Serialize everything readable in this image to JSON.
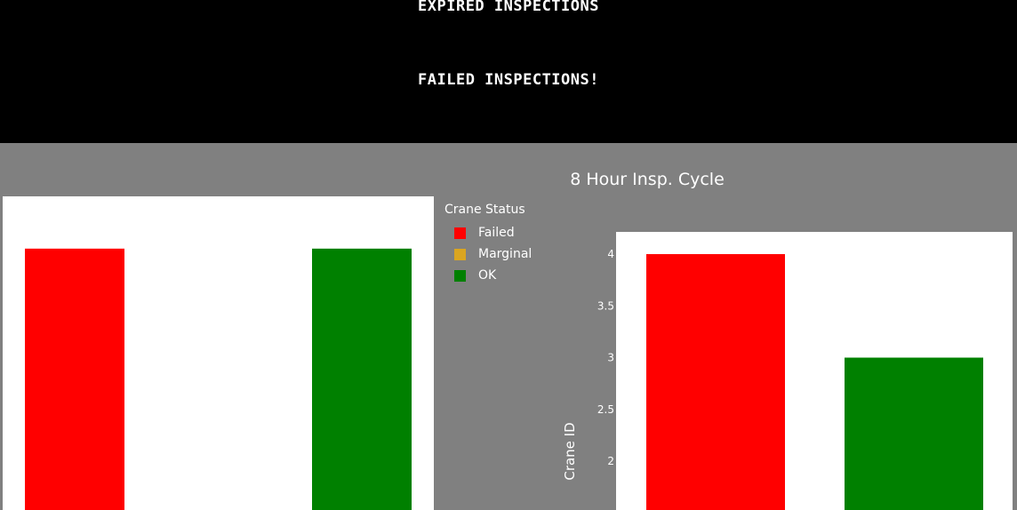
{
  "banner": {
    "line1": "EXPIRED INSPECTIONS",
    "line2": "FAILED INSPECTIONS!"
  },
  "legend": {
    "title": "Crane Status",
    "items": [
      {
        "label": "Failed",
        "color": "#ff0000"
      },
      {
        "label": "Marginal",
        "color": "#daa520"
      },
      {
        "label": "OK",
        "color": "#008000"
      }
    ]
  },
  "chart_data": [
    {
      "type": "bar",
      "title": "",
      "series": [
        {
          "name": "Failed",
          "color": "#ff0000",
          "values": [
            3
          ]
        },
        {
          "name": "OK",
          "color": "#008000",
          "values": [
            3
          ]
        }
      ],
      "ylim": [
        0,
        3.6
      ],
      "grid": false
    },
    {
      "type": "bar",
      "title": "8 Hour Insp. Cycle",
      "ylabel": "Crane ID",
      "series": [
        {
          "name": "Failed",
          "color": "#ff0000",
          "values": [
            4
          ]
        },
        {
          "name": "OK",
          "color": "#008000",
          "values": [
            3
          ]
        }
      ],
      "yticks": [
        "4",
        "3.5",
        "3",
        "2.5",
        "2"
      ],
      "ylim": [
        1.3,
        4.2
      ],
      "grid": false
    }
  ]
}
